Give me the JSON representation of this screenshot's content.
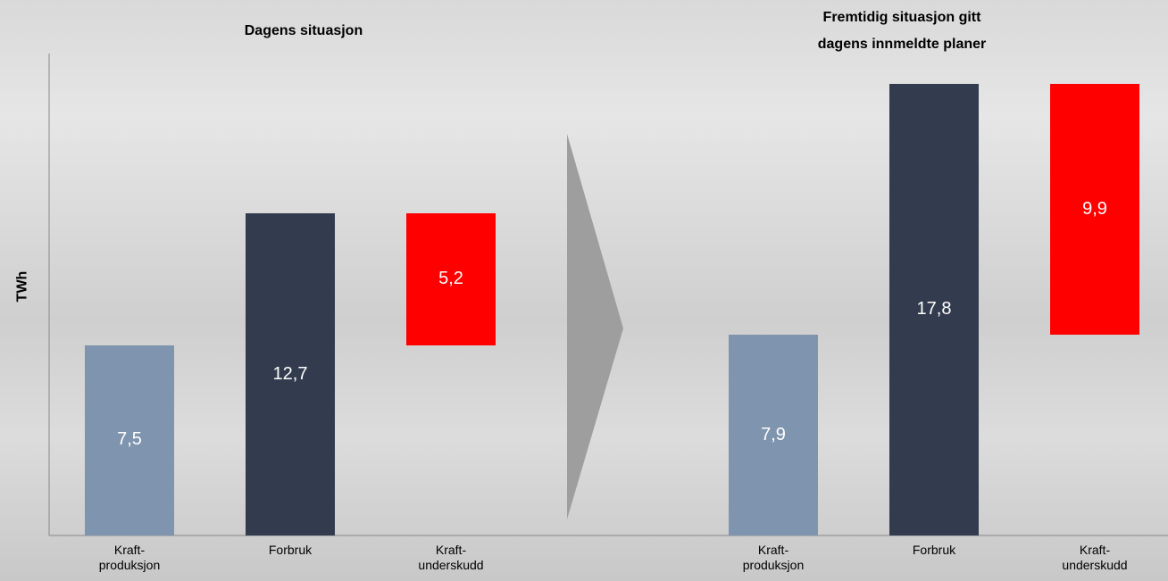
{
  "chart_data": [
    {
      "type": "waterfall",
      "title": "Dagens situasjon",
      "y_label": "TWh",
      "categories": [
        "Kraft-\nproduksjon",
        "Forbruk",
        "Kraft-\nunderskudd"
      ],
      "values": [
        7.5,
        12.7,
        5.2
      ],
      "value_labels": [
        "7,5",
        "12,7",
        "5,2"
      ],
      "colors": [
        "#7f94ae",
        "#333c4e",
        "#ff0000"
      ],
      "ylim": [
        0,
        19
      ]
    },
    {
      "type": "waterfall",
      "title": "Fremtidig situasjon gitt\ndagens innmeldte planer",
      "categories": [
        "Kraft-\nproduksjon",
        "Forbruk",
        "Kraft-\nunderskudd"
      ],
      "values": [
        7.9,
        17.8,
        9.9
      ],
      "value_labels": [
        "7,9",
        "17,8",
        "9,9"
      ],
      "colors": [
        "#7f94ae",
        "#333c4e",
        "#ff0000"
      ],
      "ylim": [
        0,
        19
      ]
    }
  ]
}
